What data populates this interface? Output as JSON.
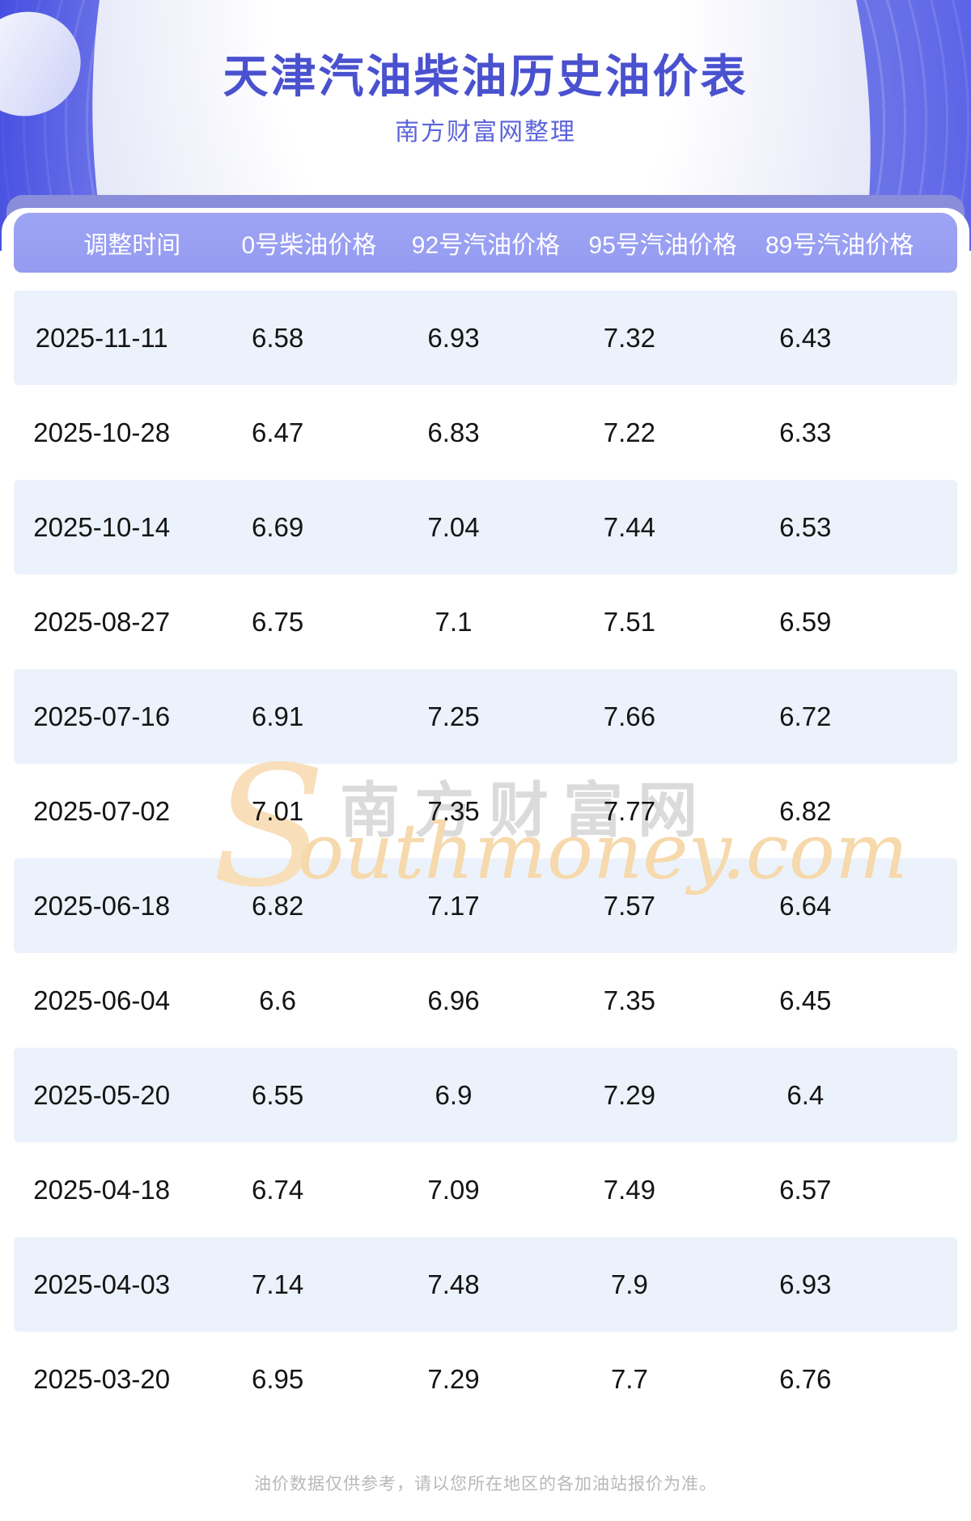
{
  "banner": {
    "title": "天津汽油柴油历史油价表",
    "subtitle": "南方财富网整理"
  },
  "table": {
    "columns": [
      "调整时间",
      "0号柴油价格",
      "92号汽油价格",
      "95号汽油价格",
      "89号汽油价格"
    ],
    "rows": [
      [
        "2025-11-11",
        "6.58",
        "6.93",
        "7.32",
        "6.43"
      ],
      [
        "2025-10-28",
        "6.47",
        "6.83",
        "7.22",
        "6.33"
      ],
      [
        "2025-10-14",
        "6.69",
        "7.04",
        "7.44",
        "6.53"
      ],
      [
        "2025-08-27",
        "6.75",
        "7.1",
        "7.51",
        "6.59"
      ],
      [
        "2025-07-16",
        "6.91",
        "7.25",
        "7.66",
        "6.72"
      ],
      [
        "2025-07-02",
        "7.01",
        "7.35",
        "7.77",
        "6.82"
      ],
      [
        "2025-06-18",
        "6.82",
        "7.17",
        "7.57",
        "6.64"
      ],
      [
        "2025-06-04",
        "6.6",
        "6.96",
        "7.35",
        "6.45"
      ],
      [
        "2025-05-20",
        "6.55",
        "6.9",
        "7.29",
        "6.4"
      ],
      [
        "2025-04-18",
        "6.74",
        "7.09",
        "7.49",
        "6.57"
      ],
      [
        "2025-04-03",
        "7.14",
        "7.48",
        "7.9",
        "6.93"
      ],
      [
        "2025-03-20",
        "6.95",
        "7.29",
        "7.7",
        "6.76"
      ]
    ]
  },
  "watermark": {
    "s_glyph": "S",
    "chinese": "南方财富网",
    "english": "outhmoney.com"
  },
  "footer": {
    "note": "油价数据仅供参考，请以您所在地区的各加油站报价为准。"
  },
  "colors": {
    "banner_purple": "#6a72e8",
    "back_bar": "#8a8eda",
    "header_bar": "#9aa0f2",
    "header_text": "#ffffff",
    "title_text": "#4a51cf",
    "subtitle_text": "#5b64d9",
    "row_alt_bg": "#ebf2fb",
    "row_text": "#141414",
    "watermark_orange": "#f6d9ac",
    "watermark_gray": "#dbdbdb",
    "footer_text": "#b8b8b8"
  }
}
